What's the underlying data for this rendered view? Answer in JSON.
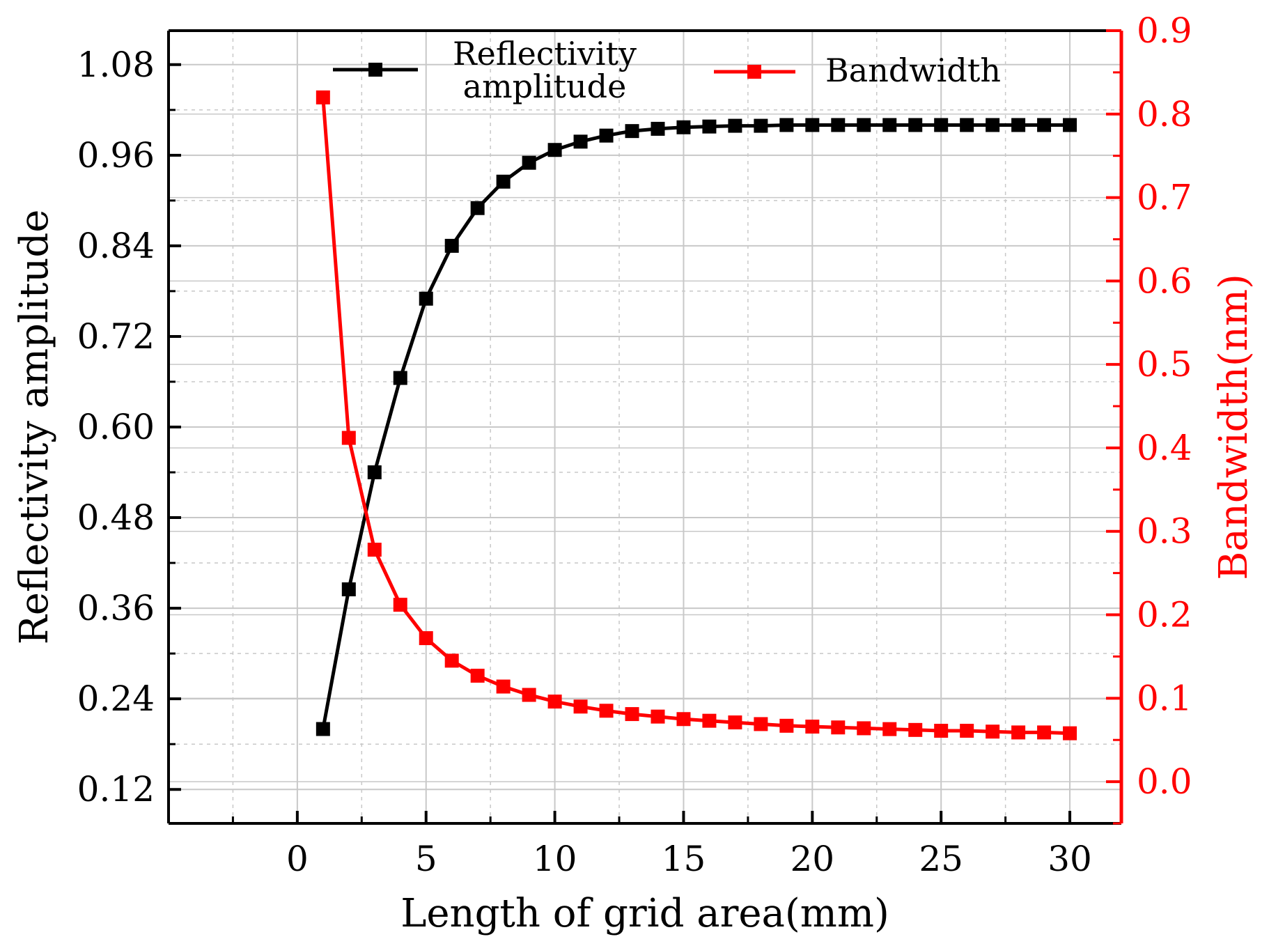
{
  "chart_data": {
    "type": "line",
    "xlabel": "Length of grid area(mm)",
    "y1label": "Reflectivity amplitude",
    "y2label": "Bandwidth(nm)",
    "xlim": [
      -5,
      32
    ],
    "y1lim": [
      0.075,
      1.125
    ],
    "y2lim": [
      -0.05,
      0.9
    ],
    "x_ticks": [
      0,
      5,
      10,
      15,
      20,
      25,
      30
    ],
    "y1_ticks": [
      "0.12",
      "0.24",
      "0.36",
      "0.48",
      "0.60",
      "0.72",
      "0.84",
      "0.96",
      "1.08"
    ],
    "y2_ticks": [
      "0.0",
      "0.1",
      "0.2",
      "0.3",
      "0.4",
      "0.5",
      "0.6",
      "0.7",
      "0.8",
      "0.9"
    ],
    "grid": true,
    "legend_position": "top",
    "x": [
      1,
      2,
      3,
      4,
      5,
      6,
      7,
      8,
      9,
      10,
      11,
      12,
      13,
      14,
      15,
      16,
      17,
      18,
      19,
      20,
      21,
      22,
      23,
      24,
      25,
      26,
      27,
      28,
      29,
      30
    ],
    "series": [
      {
        "name": "Reflectivity amplitude",
        "axis": "left",
        "color": "#000000",
        "values": [
          0.2,
          0.385,
          0.54,
          0.665,
          0.77,
          0.84,
          0.89,
          0.925,
          0.95,
          0.967,
          0.978,
          0.986,
          0.992,
          0.995,
          0.997,
          0.998,
          0.999,
          0.999,
          1.0,
          1.0,
          1.0,
          1.0,
          1.0,
          1.0,
          1.0,
          1.0,
          1.0,
          1.0,
          1.0,
          1.0
        ]
      },
      {
        "name": "Bandwidth",
        "axis": "right",
        "color": "#ff0000",
        "values": [
          0.82,
          0.412,
          0.278,
          0.212,
          0.172,
          0.145,
          0.127,
          0.114,
          0.104,
          0.096,
          0.09,
          0.085,
          0.081,
          0.078,
          0.075,
          0.073,
          0.071,
          0.069,
          0.067,
          0.066,
          0.065,
          0.064,
          0.063,
          0.062,
          0.061,
          0.061,
          0.06,
          0.059,
          0.059,
          0.058
        ]
      }
    ],
    "colors": {
      "left_axis": "#000000",
      "right_axis": "#ff0000",
      "grid": "#c8c8c8"
    }
  }
}
